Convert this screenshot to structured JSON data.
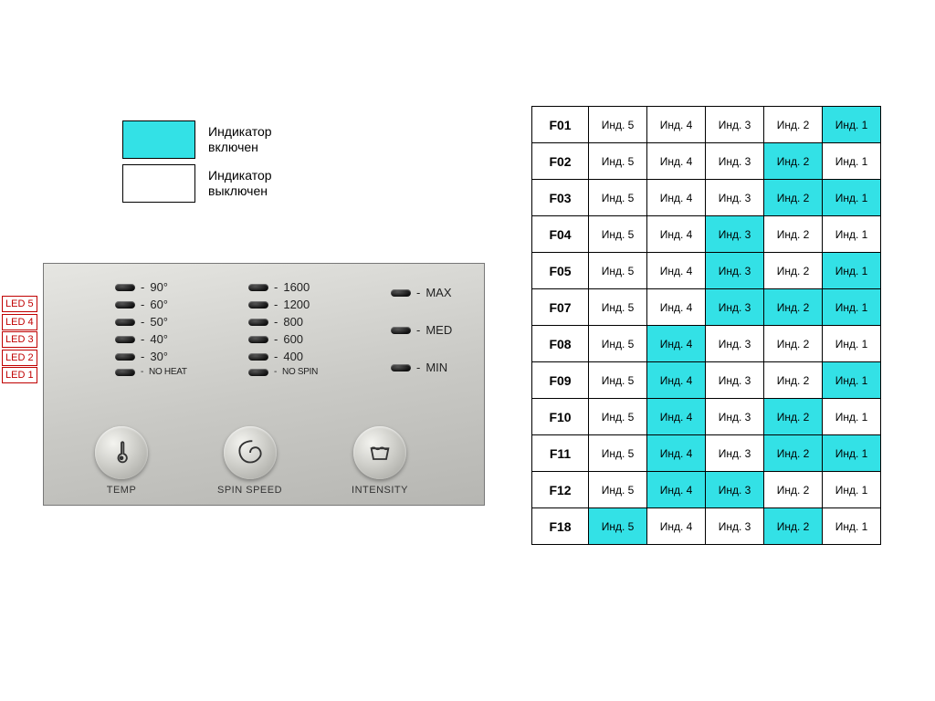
{
  "colors": {
    "on": "#33e1e6",
    "off": "#ffffff",
    "callout": "#c00000",
    "panel_bg_start": "#e6e6e2",
    "panel_bg_end": "#b6b6b2",
    "text": "#222222",
    "border": "#000000"
  },
  "legend": {
    "on_label": "Индикатор\nвключен",
    "off_label": "Индикатор\nвыключен"
  },
  "panel": {
    "temp_values": [
      "90°",
      "60°",
      "50°",
      "40°",
      "30°",
      "NO HEAT"
    ],
    "spin_values": [
      "1600",
      "1200",
      "800",
      "600",
      "400",
      "NO SPIN"
    ],
    "intensity_values": [
      "MAX",
      "MED",
      "MIN"
    ],
    "buttons": {
      "temp": "TEMP",
      "spin": "SPIN SPEED",
      "intensity": "INTENSITY"
    }
  },
  "led_callouts": [
    "LED 5",
    "LED 4",
    "LED 3",
    "LED 2",
    "LED 1"
  ],
  "table": {
    "indicator_labels": [
      "Инд. 5",
      "Инд. 4",
      "Инд. 3",
      "Инд. 2",
      "Инд. 1"
    ],
    "rows": [
      {
        "code": "F01",
        "on": [
          0,
          0,
          0,
          0,
          1
        ]
      },
      {
        "code": "F02",
        "on": [
          0,
          0,
          0,
          1,
          0
        ]
      },
      {
        "code": "F03",
        "on": [
          0,
          0,
          0,
          1,
          1
        ]
      },
      {
        "code": "F04",
        "on": [
          0,
          0,
          1,
          0,
          0
        ]
      },
      {
        "code": "F05",
        "on": [
          0,
          0,
          1,
          0,
          1
        ]
      },
      {
        "code": "F07",
        "on": [
          0,
          0,
          1,
          1,
          1
        ]
      },
      {
        "code": "F08",
        "on": [
          0,
          1,
          0,
          0,
          0
        ]
      },
      {
        "code": "F09",
        "on": [
          0,
          1,
          0,
          0,
          1
        ]
      },
      {
        "code": "F10",
        "on": [
          0,
          1,
          0,
          1,
          0
        ]
      },
      {
        "code": "F11",
        "on": [
          0,
          1,
          0,
          1,
          1
        ]
      },
      {
        "code": "F12",
        "on": [
          0,
          1,
          1,
          0,
          0
        ]
      },
      {
        "code": "F18",
        "on": [
          1,
          0,
          0,
          1,
          0
        ]
      }
    ]
  }
}
